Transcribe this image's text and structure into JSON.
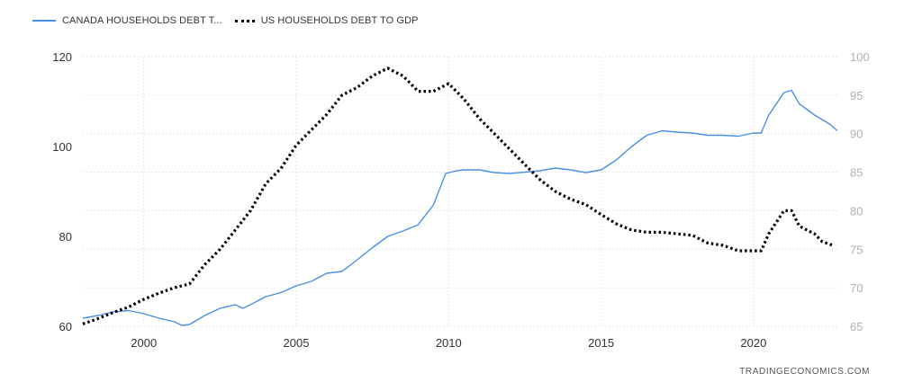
{
  "chart_data": {
    "type": "line",
    "title": "",
    "xlabel": "",
    "ylabel_left": "",
    "ylabel_right": "",
    "xlim": [
      1998.0,
      2022.75
    ],
    "ylim_left": [
      60,
      120
    ],
    "ylim_right": [
      65,
      100
    ],
    "x_ticks": [
      2000,
      2005,
      2010,
      2015,
      2020
    ],
    "y_ticks_left": [
      60,
      80,
      100,
      120
    ],
    "y_ticks_right": [
      65,
      70,
      75,
      80,
      85,
      90,
      95,
      100
    ],
    "grid": true,
    "legend_position": "top-left",
    "series": [
      {
        "name": "CANADA HOUSEHOLDS DEBT T...",
        "axis": "left",
        "color": "#4a90e2",
        "style": "solid",
        "points": [
          [
            1998.0,
            61.8
          ],
          [
            1998.5,
            62.4
          ],
          [
            1999.0,
            63.2
          ],
          [
            1999.5,
            63.5
          ],
          [
            2000.0,
            62.8
          ],
          [
            2000.5,
            61.8
          ],
          [
            2001.0,
            61.0
          ],
          [
            2001.25,
            60.2
          ],
          [
            2001.5,
            60.4
          ],
          [
            2002.0,
            62.4
          ],
          [
            2002.5,
            64.0
          ],
          [
            2003.0,
            64.8
          ],
          [
            2003.25,
            64.0
          ],
          [
            2003.5,
            64.8
          ],
          [
            2004.0,
            66.6
          ],
          [
            2004.5,
            67.5
          ],
          [
            2005.0,
            69.0
          ],
          [
            2005.5,
            70.0
          ],
          [
            2006.0,
            71.8
          ],
          [
            2006.5,
            72.2
          ],
          [
            2007.0,
            74.8
          ],
          [
            2007.5,
            77.5
          ],
          [
            2008.0,
            80.0
          ],
          [
            2008.5,
            81.2
          ],
          [
            2009.0,
            82.6
          ],
          [
            2009.5,
            87.0
          ],
          [
            2009.9,
            94.0
          ],
          [
            2010.25,
            94.6
          ],
          [
            2010.5,
            94.8
          ],
          [
            2011.0,
            94.8
          ],
          [
            2011.5,
            94.2
          ],
          [
            2012.0,
            94.0
          ],
          [
            2012.5,
            94.3
          ],
          [
            2013.0,
            94.6
          ],
          [
            2013.5,
            95.2
          ],
          [
            2014.0,
            94.8
          ],
          [
            2014.5,
            94.2
          ],
          [
            2015.0,
            94.8
          ],
          [
            2015.5,
            97.0
          ],
          [
            2016.0,
            100.0
          ],
          [
            2016.5,
            102.5
          ],
          [
            2017.0,
            103.5
          ],
          [
            2017.5,
            103.2
          ],
          [
            2018.0,
            103.0
          ],
          [
            2018.5,
            102.5
          ],
          [
            2019.0,
            102.5
          ],
          [
            2019.5,
            102.3
          ],
          [
            2020.0,
            103.0
          ],
          [
            2020.25,
            103.0
          ],
          [
            2020.5,
            107.0
          ],
          [
            2021.0,
            112.0
          ],
          [
            2021.25,
            112.5
          ],
          [
            2021.5,
            109.5
          ],
          [
            2022.0,
            107.0
          ],
          [
            2022.5,
            105.0
          ],
          [
            2022.75,
            103.5
          ]
        ]
      },
      {
        "name": "US HOUSEHOLDS DEBT TO GDP",
        "axis": "right",
        "color": "#000000",
        "style": "dotted",
        "points": [
          [
            1998.0,
            65.3
          ],
          [
            1998.5,
            66.0
          ],
          [
            1999.0,
            66.8
          ],
          [
            1999.5,
            67.5
          ],
          [
            2000.0,
            68.5
          ],
          [
            2000.5,
            69.3
          ],
          [
            2001.0,
            70.0
          ],
          [
            2001.5,
            70.5
          ],
          [
            2002.0,
            73.0
          ],
          [
            2002.5,
            75.0
          ],
          [
            2003.0,
            77.5
          ],
          [
            2003.5,
            80.0
          ],
          [
            2004.0,
            83.5
          ],
          [
            2004.5,
            85.5
          ],
          [
            2005.0,
            88.5
          ],
          [
            2005.5,
            90.5
          ],
          [
            2006.0,
            92.5
          ],
          [
            2006.5,
            95.0
          ],
          [
            2007.0,
            96.0
          ],
          [
            2007.5,
            97.5
          ],
          [
            2008.0,
            98.5
          ],
          [
            2008.5,
            97.5
          ],
          [
            2009.0,
            95.5
          ],
          [
            2009.5,
            95.5
          ],
          [
            2010.0,
            96.5
          ],
          [
            2010.5,
            94.5
          ],
          [
            2011.0,
            92.0
          ],
          [
            2011.5,
            90.0
          ],
          [
            2012.0,
            88.0
          ],
          [
            2012.5,
            86.0
          ],
          [
            2013.0,
            84.0
          ],
          [
            2013.5,
            82.5
          ],
          [
            2014.0,
            81.5
          ],
          [
            2014.5,
            80.8
          ],
          [
            2015.0,
            79.5
          ],
          [
            2015.5,
            78.3
          ],
          [
            2016.0,
            77.5
          ],
          [
            2016.5,
            77.2
          ],
          [
            2017.0,
            77.2
          ],
          [
            2017.5,
            77.0
          ],
          [
            2018.0,
            76.8
          ],
          [
            2018.5,
            75.8
          ],
          [
            2019.0,
            75.5
          ],
          [
            2019.5,
            74.8
          ],
          [
            2020.0,
            74.8
          ],
          [
            2020.25,
            74.8
          ],
          [
            2020.5,
            77.0
          ],
          [
            2021.0,
            80.0
          ],
          [
            2021.25,
            80.0
          ],
          [
            2021.5,
            78.0
          ],
          [
            2022.0,
            77.0
          ],
          [
            2022.25,
            76.0
          ],
          [
            2022.6,
            75.5
          ]
        ]
      }
    ]
  },
  "legend": {
    "canada_label": "CANADA HOUSEHOLDS DEBT T...",
    "us_label": "US HOUSEHOLDS DEBT TO GDP"
  },
  "footer": {
    "credit": "TRADINGECONOMICS.COM"
  }
}
